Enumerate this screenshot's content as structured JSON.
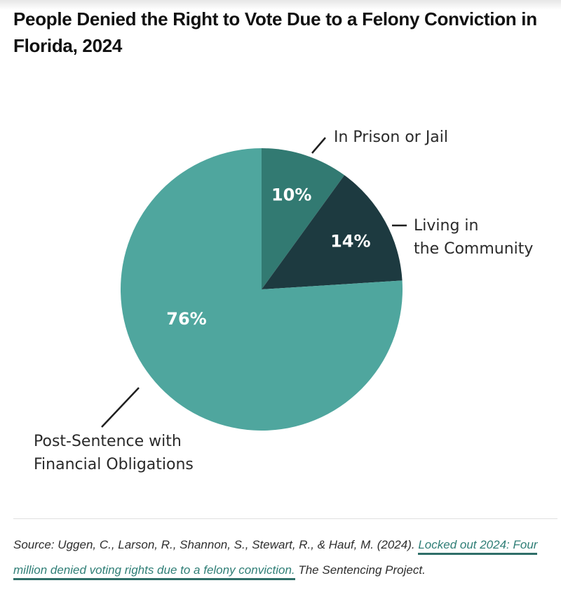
{
  "chart_data": {
    "type": "pie",
    "title": "People Denied the Right to Vote Due to a Felony Conviction in Florida, 2024",
    "slices": [
      {
        "name": "In Prison or Jail",
        "label_lines": [
          "In Prison or Jail"
        ],
        "value": 10,
        "value_label": "10%",
        "color": "#327a72"
      },
      {
        "name": "Living in the Community",
        "label_lines": [
          "Living in",
          "the Community"
        ],
        "value": 14,
        "value_label": "14%",
        "color": "#1d3a40"
      },
      {
        "name": "Post-Sentence with Financial Obligations",
        "label_lines": [
          "Post-Sentence with",
          "Financial Obligations"
        ],
        "value": 76,
        "value_label": "76%",
        "color": "#4fa69e"
      }
    ],
    "start_angle": "12 o'clock",
    "direction": "clockwise"
  },
  "source": {
    "prefix": "Source: Uggen, C., Larson, R., Shannon, S., Stewart, R., & Hauf, M. (2024). ",
    "link_text": "Locked out 2024: Four million denied voting rights due to a felony conviction.",
    "suffix": " The Sentencing Project."
  }
}
